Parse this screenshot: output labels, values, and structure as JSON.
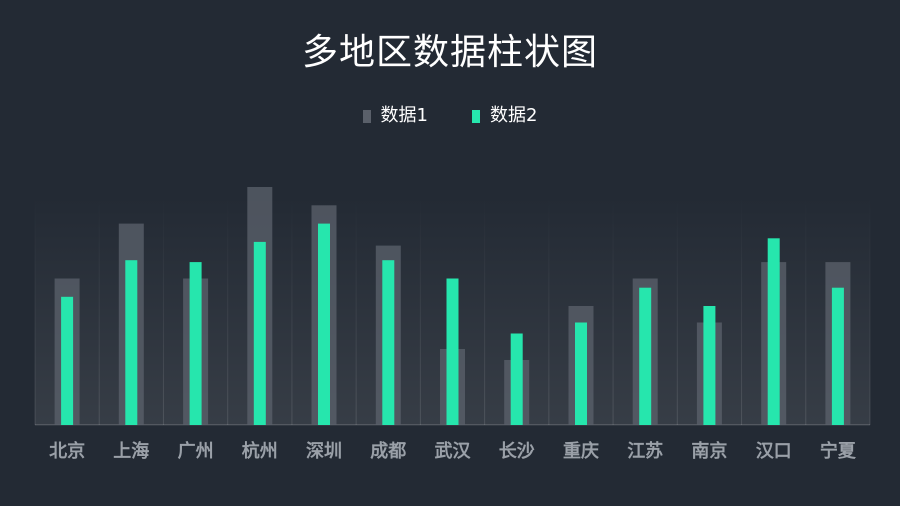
{
  "colors": {
    "background": "#232a34",
    "series1": "#5a606a",
    "series2": "#26e6ad",
    "category_label": "#9aa0a8",
    "title": "#ffffff"
  },
  "chart_data": {
    "type": "bar",
    "title": "多地区数据柱状图",
    "xlabel": "",
    "ylabel": "",
    "ylim": [
      0,
      260
    ],
    "grid": false,
    "legend": "top-center",
    "categories": [
      "北京",
      "上海",
      "广州",
      "杭州",
      "深圳",
      "成都",
      "武汉",
      "长沙",
      "重庆",
      "江苏",
      "南京",
      "汉口",
      "宁夏"
    ],
    "series": [
      {
        "name": "数据1",
        "values": [
          160,
          220,
          160,
          260,
          240,
          196,
          83,
          71,
          130,
          160,
          112,
          178,
          178
        ]
      },
      {
        "name": "数据2",
        "values": [
          140,
          180,
          178,
          200,
          220,
          180,
          160,
          100,
          112,
          150,
          130,
          204,
          150
        ]
      }
    ]
  }
}
